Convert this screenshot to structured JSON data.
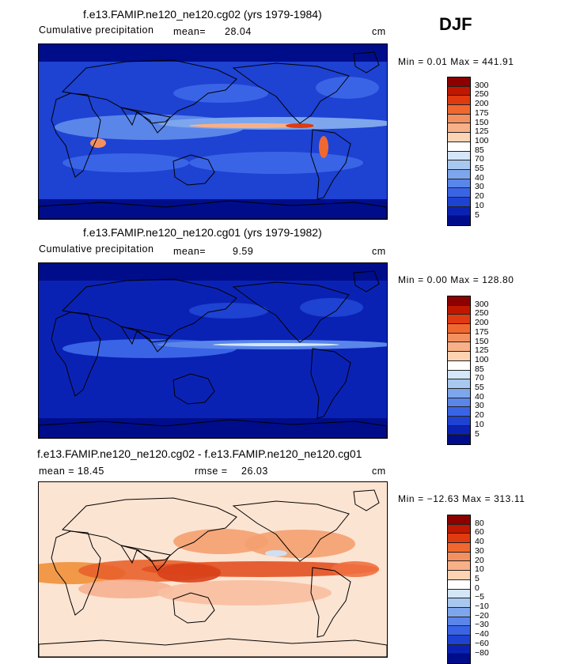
{
  "season": "DJF",
  "panels": [
    {
      "title": "f.e13.FAMIP.ne120_ne120.cg02 (yrs 1979-1984)",
      "left_label": "Cumulative precipitation",
      "mid_label": "mean=",
      "mid_value": "28.04",
      "unit": "cm",
      "minmax": "Min =   0.01 Max = 441.91",
      "levels": [
        "300",
        "250",
        "200",
        "175",
        "150",
        "125",
        "100",
        "85",
        "70",
        "55",
        "40",
        "30",
        "20",
        "10",
        "5"
      ],
      "colors": [
        "#8c0000",
        "#c01800",
        "#e03a10",
        "#f06830",
        "#f49060",
        "#f8b088",
        "#fcd4b4",
        "#ffffff",
        "#d4e6f8",
        "#a8c8f0",
        "#7ea6ec",
        "#5a86ea",
        "#3a64e6",
        "#1e42d2",
        "#0a22b4",
        "#000d8a"
      ],
      "style": "full"
    },
    {
      "title": "f.e13.FAMIP.ne120_ne120.cg01 (yrs 1979-1982)",
      "left_label": "Cumulative precipitation",
      "mid_label": "mean=",
      "mid_value": "9.59",
      "unit": "cm",
      "minmax": "Min =   0.00 Max = 128.80",
      "levels": [
        "300",
        "250",
        "200",
        "175",
        "150",
        "125",
        "100",
        "85",
        "70",
        "55",
        "40",
        "30",
        "20",
        "10",
        "5"
      ],
      "colors": [
        "#8c0000",
        "#c01800",
        "#e03a10",
        "#f06830",
        "#f49060",
        "#f8b088",
        "#fcd4b4",
        "#ffffff",
        "#d4e6f8",
        "#a8c8f0",
        "#7ea6ec",
        "#5a86ea",
        "#3a64e6",
        "#1e42d2",
        "#0a22b4",
        "#000d8a"
      ],
      "style": "low"
    },
    {
      "title": "f.e13.FAMIP.ne120_ne120.cg02 - f.e13.FAMIP.ne120_ne120.cg01",
      "left_label": "mean =   18.45",
      "mid_label": "rmse =",
      "mid_value": "26.03",
      "unit": "cm",
      "minmax": "Min = −12.63 Max = 313.11",
      "levels": [
        "80",
        "60",
        "40",
        "30",
        "20",
        "10",
        "5",
        "0",
        "−5",
        "−10",
        "−20",
        "−30",
        "−40",
        "−60",
        "−80"
      ],
      "colors": [
        "#8c0000",
        "#c01800",
        "#e03a10",
        "#f06830",
        "#f49060",
        "#f8b088",
        "#fcd4b4",
        "#ffffff",
        "#d4e6f8",
        "#a8c8f0",
        "#7ea6ec",
        "#5a86ea",
        "#3a64e6",
        "#1e42d2",
        "#0a22b4",
        "#000d8a"
      ],
      "style": "diff"
    }
  ],
  "chart_data": [
    {
      "type": "heatmap",
      "title": "f.e13.FAMIP.ne120_ne120.cg02 (yrs 1979-1984)",
      "variable": "Cumulative precipitation",
      "units": "cm",
      "mean": 28.04,
      "min": 0.01,
      "max": 441.91,
      "contour_levels": [
        5,
        10,
        20,
        30,
        40,
        55,
        70,
        85,
        100,
        125,
        150,
        175,
        200,
        250,
        300
      ]
    },
    {
      "type": "heatmap",
      "title": "f.e13.FAMIP.ne120_ne120.cg01 (yrs 1979-1982)",
      "variable": "Cumulative precipitation",
      "units": "cm",
      "mean": 9.59,
      "min": 0.0,
      "max": 128.8,
      "contour_levels": [
        5,
        10,
        20,
        30,
        40,
        55,
        70,
        85,
        100,
        125,
        150,
        175,
        200,
        250,
        300
      ]
    },
    {
      "type": "heatmap",
      "title": "f.e13.FAMIP.ne120_ne120.cg02 - f.e13.FAMIP.ne120_ne120.cg01",
      "units": "cm",
      "mean": 18.45,
      "rmse": 26.03,
      "min": -12.63,
      "max": 313.11,
      "contour_levels": [
        -80,
        -60,
        -40,
        -30,
        -20,
        -10,
        -5,
        0,
        5,
        10,
        20,
        30,
        40,
        60,
        80
      ]
    }
  ]
}
